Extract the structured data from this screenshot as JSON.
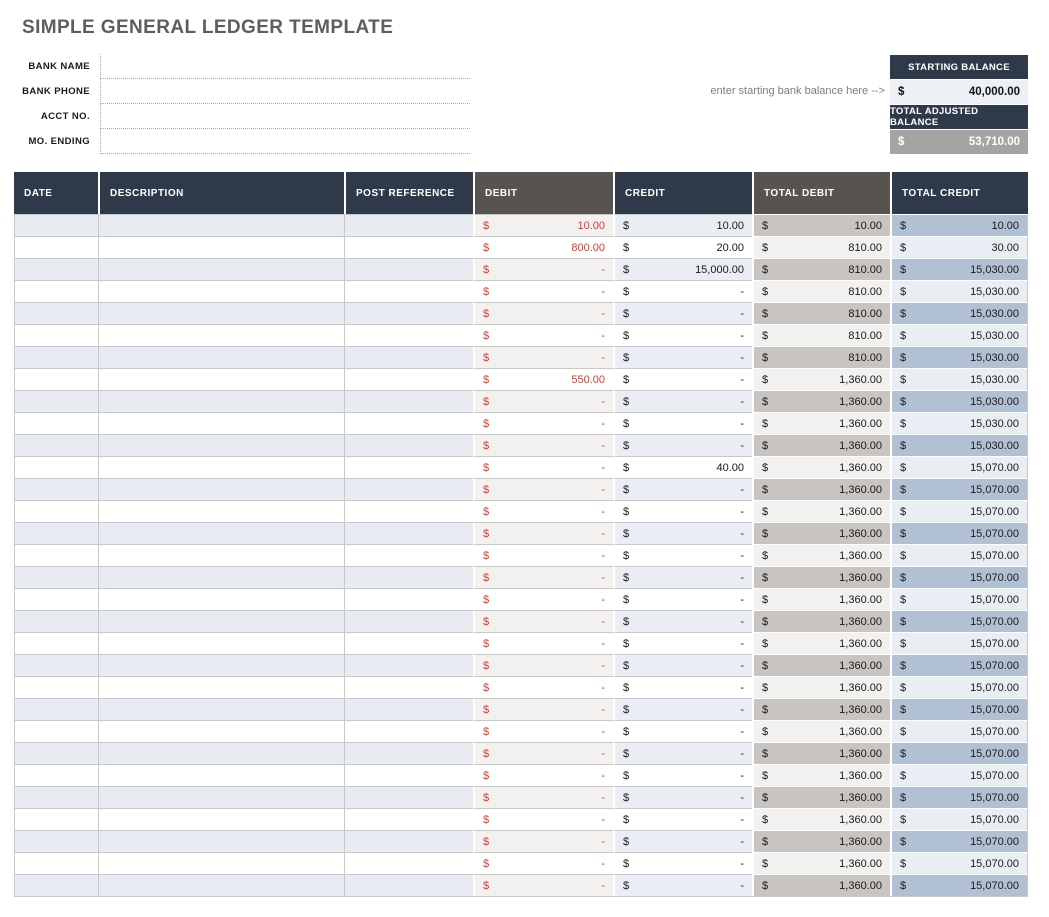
{
  "title": "SIMPLE GENERAL LEDGER TEMPLATE",
  "form": {
    "fields": [
      {
        "label": "BANK NAME",
        "value": ""
      },
      {
        "label": "BANK PHONE",
        "value": ""
      },
      {
        "label": "ACCT NO.",
        "value": ""
      },
      {
        "label": "MO. ENDING",
        "value": ""
      }
    ]
  },
  "balance": {
    "hint": "enter starting bank balance here -->",
    "starting": {
      "label": "STARTING BALANCE",
      "currency": "$",
      "value": "40,000.00"
    },
    "adjusted": {
      "label": "TOTAL ADJUSTED BALANCE",
      "currency": "$",
      "value": "53,710.00"
    }
  },
  "table": {
    "currency": "$",
    "columns": [
      {
        "key": "date",
        "label": "DATE"
      },
      {
        "key": "description",
        "label": "DESCRIPTION"
      },
      {
        "key": "post_reference",
        "label": "POST REFERENCE"
      },
      {
        "key": "debit",
        "label": "DEBIT"
      },
      {
        "key": "credit",
        "label": "CREDIT"
      },
      {
        "key": "total_debit",
        "label": "TOTAL DEBIT"
      },
      {
        "key": "total_credit",
        "label": "TOTAL CREDIT"
      }
    ],
    "rows": [
      {
        "date": "",
        "description": "",
        "post_reference": "",
        "debit": "10.00",
        "credit": "10.00",
        "total_debit": "10.00",
        "total_credit": "10.00"
      },
      {
        "date": "",
        "description": "",
        "post_reference": "",
        "debit": "800.00",
        "credit": "20.00",
        "total_debit": "810.00",
        "total_credit": "30.00"
      },
      {
        "date": "",
        "description": "",
        "post_reference": "",
        "debit": "-",
        "credit": "15,000.00",
        "total_debit": "810.00",
        "total_credit": "15,030.00"
      },
      {
        "date": "",
        "description": "",
        "post_reference": "",
        "debit": "-",
        "credit": "-",
        "total_debit": "810.00",
        "total_credit": "15,030.00"
      },
      {
        "date": "",
        "description": "",
        "post_reference": "",
        "debit": "-",
        "credit": "-",
        "total_debit": "810.00",
        "total_credit": "15,030.00"
      },
      {
        "date": "",
        "description": "",
        "post_reference": "",
        "debit": "-",
        "credit": "-",
        "total_debit": "810.00",
        "total_credit": "15,030.00"
      },
      {
        "date": "",
        "description": "",
        "post_reference": "",
        "debit": "-",
        "credit": "-",
        "total_debit": "810.00",
        "total_credit": "15,030.00"
      },
      {
        "date": "",
        "description": "",
        "post_reference": "",
        "debit": "550.00",
        "credit": "-",
        "total_debit": "1,360.00",
        "total_credit": "15,030.00"
      },
      {
        "date": "",
        "description": "",
        "post_reference": "",
        "debit": "-",
        "credit": "-",
        "total_debit": "1,360.00",
        "total_credit": "15,030.00"
      },
      {
        "date": "",
        "description": "",
        "post_reference": "",
        "debit": "-",
        "credit": "-",
        "total_debit": "1,360.00",
        "total_credit": "15,030.00"
      },
      {
        "date": "",
        "description": "",
        "post_reference": "",
        "debit": "-",
        "credit": "-",
        "total_debit": "1,360.00",
        "total_credit": "15,030.00"
      },
      {
        "date": "",
        "description": "",
        "post_reference": "",
        "debit": "-",
        "credit": "40.00",
        "total_debit": "1,360.00",
        "total_credit": "15,070.00"
      },
      {
        "date": "",
        "description": "",
        "post_reference": "",
        "debit": "-",
        "credit": "-",
        "total_debit": "1,360.00",
        "total_credit": "15,070.00"
      },
      {
        "date": "",
        "description": "",
        "post_reference": "",
        "debit": "-",
        "credit": "-",
        "total_debit": "1,360.00",
        "total_credit": "15,070.00"
      },
      {
        "date": "",
        "description": "",
        "post_reference": "",
        "debit": "-",
        "credit": "-",
        "total_debit": "1,360.00",
        "total_credit": "15,070.00"
      },
      {
        "date": "",
        "description": "",
        "post_reference": "",
        "debit": "-",
        "credit": "-",
        "total_debit": "1,360.00",
        "total_credit": "15,070.00"
      },
      {
        "date": "",
        "description": "",
        "post_reference": "",
        "debit": "-",
        "credit": "-",
        "total_debit": "1,360.00",
        "total_credit": "15,070.00"
      },
      {
        "date": "",
        "description": "",
        "post_reference": "",
        "debit": "-",
        "credit": "-",
        "total_debit": "1,360.00",
        "total_credit": "15,070.00"
      },
      {
        "date": "",
        "description": "",
        "post_reference": "",
        "debit": "-",
        "credit": "-",
        "total_debit": "1,360.00",
        "total_credit": "15,070.00"
      },
      {
        "date": "",
        "description": "",
        "post_reference": "",
        "debit": "-",
        "credit": "-",
        "total_debit": "1,360.00",
        "total_credit": "15,070.00"
      },
      {
        "date": "",
        "description": "",
        "post_reference": "",
        "debit": "-",
        "credit": "-",
        "total_debit": "1,360.00",
        "total_credit": "15,070.00"
      },
      {
        "date": "",
        "description": "",
        "post_reference": "",
        "debit": "-",
        "credit": "-",
        "total_debit": "1,360.00",
        "total_credit": "15,070.00"
      },
      {
        "date": "",
        "description": "",
        "post_reference": "",
        "debit": "-",
        "credit": "-",
        "total_debit": "1,360.00",
        "total_credit": "15,070.00"
      },
      {
        "date": "",
        "description": "",
        "post_reference": "",
        "debit": "-",
        "credit": "-",
        "total_debit": "1,360.00",
        "total_credit": "15,070.00"
      },
      {
        "date": "",
        "description": "",
        "post_reference": "",
        "debit": "-",
        "credit": "-",
        "total_debit": "1,360.00",
        "total_credit": "15,070.00"
      },
      {
        "date": "",
        "description": "",
        "post_reference": "",
        "debit": "-",
        "credit": "-",
        "total_debit": "1,360.00",
        "total_credit": "15,070.00"
      },
      {
        "date": "",
        "description": "",
        "post_reference": "",
        "debit": "-",
        "credit": "-",
        "total_debit": "1,360.00",
        "total_credit": "15,070.00"
      },
      {
        "date": "",
        "description": "",
        "post_reference": "",
        "debit": "-",
        "credit": "-",
        "total_debit": "1,360.00",
        "total_credit": "15,070.00"
      },
      {
        "date": "",
        "description": "",
        "post_reference": "",
        "debit": "-",
        "credit": "-",
        "total_debit": "1,360.00",
        "total_credit": "15,070.00"
      },
      {
        "date": "",
        "description": "",
        "post_reference": "",
        "debit": "-",
        "credit": "-",
        "total_debit": "1,360.00",
        "total_credit": "15,070.00"
      },
      {
        "date": "",
        "description": "",
        "post_reference": "",
        "debit": "-",
        "credit": "-",
        "total_debit": "1,360.00",
        "total_credit": "15,070.00"
      }
    ]
  },
  "colors": {
    "header_navy": "#2e3a49",
    "header_gray": "#57534f",
    "debit_red": "#e2382d",
    "row_shade_left": "#e8ebf1",
    "row_shade_debit": "#f3f1f0",
    "row_shade_credit": "#eaeef4",
    "total_debit_shade": "#c7c4c1",
    "total_debit_light": "#f2f1ef",
    "total_credit_shade": "#b2c0d3",
    "total_credit_light": "#e9eef4",
    "adjusted_value_bg": "#a6a4a2",
    "starting_value_bg": "#edf0f5"
  }
}
